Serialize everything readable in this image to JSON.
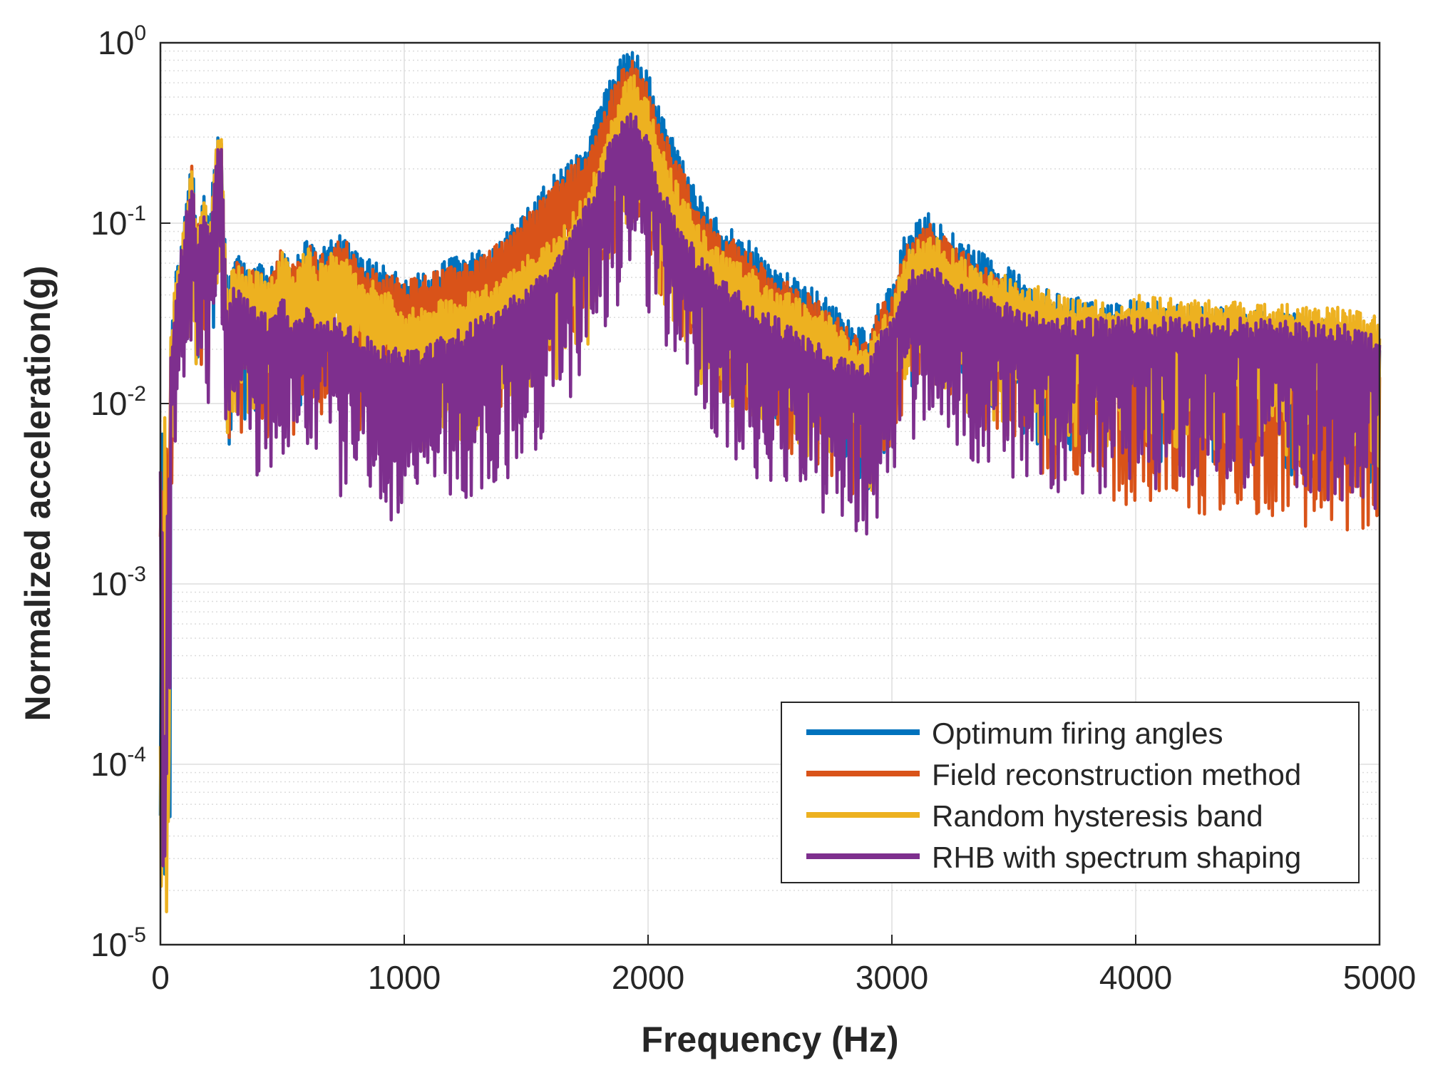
{
  "chart_data": {
    "type": "line",
    "title": "",
    "xlabel": "Frequency (Hz)",
    "ylabel": "Normalized acceleration(g)",
    "xscale": "linear",
    "yscale": "log",
    "xlim": [
      0,
      5000
    ],
    "ylim": [
      1e-05,
      1
    ],
    "grid": true,
    "minor_grid": true,
    "legend_location": "lower-right",
    "x_ticks": [
      {
        "value": 0,
        "label": "0"
      },
      {
        "value": 1000,
        "label": "1000"
      },
      {
        "value": 2000,
        "label": "2000"
      },
      {
        "value": 3000,
        "label": "3000"
      },
      {
        "value": 4000,
        "label": "4000"
      },
      {
        "value": 5000,
        "label": "5000"
      }
    ],
    "y_ticks": [
      {
        "value": 1,
        "base": "10",
        "exp": "0"
      },
      {
        "value": 0.1,
        "base": "10",
        "exp": "-1"
      },
      {
        "value": 0.01,
        "base": "10",
        "exp": "-2"
      },
      {
        "value": 0.001,
        "base": "10",
        "exp": "-3"
      },
      {
        "value": 0.0001,
        "base": "10",
        "exp": "-4"
      },
      {
        "value": 1e-05,
        "base": "10",
        "exp": "-5"
      }
    ],
    "series": [
      {
        "name": "Optimum firing angles",
        "color": "#0072BD",
        "peaks": {
          "x": [
            0,
            10,
            30,
            60,
            100,
            130,
            150,
            180,
            200,
            230,
            250,
            275,
            300,
            350,
            400,
            450,
            500,
            550,
            600,
            650,
            700,
            750,
            800,
            900,
            1000,
            1100,
            1200,
            1300,
            1400,
            1500,
            1600,
            1700,
            1750,
            1800,
            1850,
            1900,
            1930,
            1950,
            1980,
            2000,
            2050,
            2100,
            2150,
            2200,
            2300,
            2400,
            2500,
            2600,
            2700,
            2800,
            2850,
            2900,
            2950,
            3000,
            3050,
            3100,
            3150,
            3200,
            3300,
            3400,
            3500,
            3600,
            3700,
            3800,
            3900,
            4000,
            4200,
            4400,
            4600,
            4800,
            4900,
            5000
          ],
          "y": [
            0.025,
            0.02,
            0.015,
            0.05,
            0.12,
            0.24,
            0.1,
            0.15,
            0.1,
            0.3,
            0.31,
            0.04,
            0.07,
            0.06,
            0.06,
            0.055,
            0.08,
            0.06,
            0.085,
            0.07,
            0.08,
            0.09,
            0.07,
            0.06,
            0.05,
            0.055,
            0.065,
            0.07,
            0.085,
            0.12,
            0.18,
            0.25,
            0.3,
            0.45,
            0.65,
            0.88,
            1.0,
            0.9,
            0.72,
            0.7,
            0.42,
            0.3,
            0.22,
            0.15,
            0.1,
            0.085,
            0.06,
            0.05,
            0.042,
            0.032,
            0.028,
            0.025,
            0.04,
            0.045,
            0.085,
            0.1,
            0.12,
            0.1,
            0.08,
            0.065,
            0.055,
            0.045,
            0.04,
            0.038,
            0.035,
            0.038,
            0.035,
            0.034,
            0.032,
            0.03,
            0.029,
            0.026
          ]
        },
        "depth": 1.8
      },
      {
        "name": "Field reconstruction method",
        "color": "#D95319",
        "peaks": {
          "x": [
            0,
            10,
            30,
            60,
            100,
            130,
            150,
            180,
            200,
            230,
            250,
            275,
            300,
            350,
            400,
            450,
            500,
            550,
            600,
            650,
            700,
            750,
            800,
            900,
            1000,
            1100,
            1200,
            1300,
            1400,
            1500,
            1600,
            1700,
            1750,
            1800,
            1850,
            1900,
            1930,
            1950,
            1980,
            2000,
            2050,
            2100,
            2150,
            2200,
            2300,
            2400,
            2500,
            2600,
            2700,
            2800,
            2850,
            2900,
            2950,
            3000,
            3050,
            3100,
            3150,
            3200,
            3300,
            3400,
            3500,
            3600,
            3700,
            3800,
            3900,
            4000,
            4200,
            4400,
            4600,
            4800,
            4900,
            5000
          ],
          "y": [
            0.022,
            0.018,
            0.013,
            0.045,
            0.11,
            0.22,
            0.09,
            0.14,
            0.09,
            0.27,
            0.28,
            0.035,
            0.065,
            0.055,
            0.055,
            0.05,
            0.075,
            0.058,
            0.08,
            0.065,
            0.075,
            0.085,
            0.065,
            0.055,
            0.048,
            0.052,
            0.06,
            0.065,
            0.08,
            0.11,
            0.16,
            0.22,
            0.26,
            0.38,
            0.55,
            0.75,
            0.85,
            0.78,
            0.62,
            0.6,
            0.36,
            0.26,
            0.19,
            0.13,
            0.09,
            0.075,
            0.055,
            0.045,
            0.038,
            0.028,
            0.025,
            0.022,
            0.035,
            0.04,
            0.075,
            0.09,
            0.1,
            0.09,
            0.07,
            0.055,
            0.045,
            0.035,
            0.03,
            0.026,
            0.024,
            0.024,
            0.022,
            0.02,
            0.019,
            0.018,
            0.017,
            0.016
          ]
        },
        "depth": 1.9
      },
      {
        "name": "Random hysteresis band",
        "color": "#EDB120",
        "peaks": {
          "x": [
            0,
            10,
            30,
            60,
            100,
            130,
            150,
            180,
            200,
            230,
            250,
            275,
            300,
            350,
            400,
            450,
            500,
            550,
            600,
            650,
            700,
            750,
            800,
            900,
            1000,
            1100,
            1200,
            1300,
            1400,
            1500,
            1600,
            1700,
            1750,
            1800,
            1850,
            1900,
            1930,
            1950,
            1980,
            2000,
            2050,
            2100,
            2150,
            2200,
            2300,
            2400,
            2500,
            2600,
            2700,
            2800,
            2850,
            2900,
            2950,
            3000,
            3050,
            3100,
            3150,
            3200,
            3300,
            3400,
            3500,
            3600,
            3700,
            3800,
            3900,
            4000,
            4200,
            4400,
            4600,
            4800,
            4900,
            5000
          ],
          "y": [
            0.024,
            0.019,
            0.014,
            0.048,
            0.11,
            0.23,
            0.095,
            0.15,
            0.095,
            0.29,
            0.3,
            0.038,
            0.065,
            0.055,
            0.055,
            0.05,
            0.07,
            0.055,
            0.075,
            0.06,
            0.07,
            0.075,
            0.055,
            0.045,
            0.035,
            0.035,
            0.04,
            0.045,
            0.05,
            0.065,
            0.085,
            0.12,
            0.15,
            0.25,
            0.4,
            0.6,
            0.72,
            0.66,
            0.5,
            0.48,
            0.28,
            0.19,
            0.14,
            0.1,
            0.07,
            0.06,
            0.045,
            0.04,
            0.035,
            0.026,
            0.023,
            0.021,
            0.03,
            0.035,
            0.065,
            0.08,
            0.09,
            0.08,
            0.065,
            0.055,
            0.05,
            0.045,
            0.04,
            0.038,
            0.037,
            0.04,
            0.038,
            0.037,
            0.036,
            0.035,
            0.034,
            0.03
          ]
        },
        "depth": 1.7
      },
      {
        "name": "RHB with spectrum shaping",
        "color": "#7E2F8E",
        "peaks": {
          "x": [
            0,
            10,
            30,
            60,
            100,
            130,
            150,
            180,
            200,
            230,
            250,
            275,
            300,
            350,
            400,
            450,
            500,
            550,
            600,
            650,
            700,
            750,
            800,
            900,
            1000,
            1100,
            1200,
            1300,
            1400,
            1500,
            1600,
            1700,
            1750,
            1800,
            1850,
            1900,
            1930,
            1950,
            1980,
            2000,
            2050,
            2100,
            2150,
            2200,
            2300,
            2400,
            2500,
            2600,
            2700,
            2800,
            2850,
            2900,
            2950,
            3000,
            3050,
            3100,
            3150,
            3200,
            3300,
            3400,
            3500,
            3600,
            3700,
            3800,
            3900,
            4000,
            4200,
            4400,
            4600,
            4800,
            4900,
            5000
          ],
          "y": [
            0.02,
            0.016,
            0.012,
            0.04,
            0.1,
            0.2,
            0.085,
            0.13,
            0.085,
            0.26,
            0.27,
            0.03,
            0.05,
            0.04,
            0.035,
            0.03,
            0.04,
            0.03,
            0.035,
            0.028,
            0.03,
            0.03,
            0.025,
            0.022,
            0.02,
            0.022,
            0.025,
            0.03,
            0.035,
            0.045,
            0.06,
            0.1,
            0.13,
            0.2,
            0.3,
            0.38,
            0.42,
            0.4,
            0.32,
            0.3,
            0.17,
            0.12,
            0.09,
            0.07,
            0.05,
            0.04,
            0.032,
            0.026,
            0.022,
            0.018,
            0.017,
            0.016,
            0.025,
            0.03,
            0.05,
            0.058,
            0.06,
            0.055,
            0.045,
            0.04,
            0.035,
            0.032,
            0.03,
            0.03,
            0.03,
            0.03,
            0.03,
            0.03,
            0.029,
            0.028,
            0.027,
            0.024
          ]
        },
        "depth": 2.0
      }
    ]
  }
}
